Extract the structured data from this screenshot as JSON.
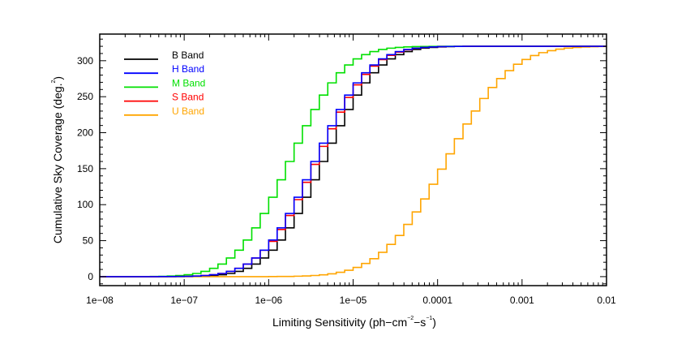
{
  "chart_data": {
    "type": "line",
    "step": true,
    "xscale": "log",
    "xlim": [
      1e-08,
      0.01
    ],
    "ylim": [
      -12.5,
      337
    ],
    "grid": false,
    "legend_placement": "top-left",
    "xlabel": {
      "main": "Limiting Sensitivity (ph−cm",
      "sup1": "−2",
      "mid": "−s",
      "sup2": "−1",
      "end": ")"
    },
    "ylabel": {
      "main": "Cumulative Sky Coverage (deg.",
      "sup": "2",
      "end": ")"
    },
    "x_tick_labels": [
      "1e−08",
      "1e−07",
      "1e−06",
      "1e−05",
      "0.0001",
      "0.001",
      "0.01"
    ],
    "x_ticks": [
      1e-08,
      1e-07,
      1e-06,
      1e-05,
      0.0001,
      0.001,
      0.01
    ],
    "y_ticks": [
      0,
      50,
      100,
      150,
      200,
      250,
      300
    ],
    "y_tick_labels": [
      "0",
      "50",
      "100",
      "150",
      "200",
      "250",
      "300"
    ],
    "x": [
      1e-08,
      1.26e-08,
      1.58e-08,
      2e-08,
      2.51e-08,
      3.16e-08,
      3.98e-08,
      5.01e-08,
      6.31e-08,
      7.94e-08,
      1e-07,
      1.26e-07,
      1.58e-07,
      2e-07,
      2.51e-07,
      3.16e-07,
      3.98e-07,
      5.01e-07,
      6.31e-07,
      7.94e-07,
      1e-06,
      1.26e-06,
      1.58e-06,
      2e-06,
      2.51e-06,
      3.16e-06,
      3.98e-06,
      5.01e-06,
      6.31e-06,
      7.94e-06,
      1e-05,
      1.26e-05,
      1.58e-05,
      2e-05,
      2.51e-05,
      3.16e-05,
      3.98e-05,
      5.01e-05,
      6.31e-05,
      7.94e-05,
      0.0001,
      0.000126,
      0.000158,
      0.0002,
      0.000251,
      0.000316,
      0.000398,
      0.000501,
      0.000631,
      0.000794,
      0.001,
      0.00126,
      0.00158,
      0.002,
      0.00251,
      0.00316,
      0.00398,
      0.00501,
      0.00631,
      0.00794,
      0.01
    ],
    "series": [
      {
        "name": "B Band",
        "color": "#000000",
        "values": [
          0,
          0,
          0,
          0,
          0,
          0,
          0,
          0,
          0.1,
          0.1,
          0.2,
          0.4,
          0.8,
          1.5,
          2.6,
          4.4,
          7.3,
          11.5,
          17.5,
          25.9,
          36.8,
          50.8,
          67.8,
          87.8,
          110.3,
          134.6,
          160,
          185.4,
          209.7,
          232.2,
          252.2,
          269.2,
          283.2,
          294.1,
          302.5,
          308.5,
          312.7,
          315.6,
          317.4,
          318.5,
          319.2,
          319.6,
          319.8,
          319.9,
          320,
          320,
          320,
          320,
          320,
          320,
          320,
          320,
          320,
          320,
          320,
          320,
          320,
          320,
          320,
          320,
          320
        ]
      },
      {
        "name": "H Band",
        "color": "#0000ff",
        "values": [
          0,
          0,
          0,
          0,
          0,
          0,
          0,
          0.1,
          0.1,
          0.2,
          0.4,
          0.8,
          1.5,
          2.6,
          4.4,
          7.3,
          11.5,
          17.5,
          25.9,
          36.8,
          50.8,
          67.8,
          87.8,
          110.3,
          134.6,
          160,
          185.4,
          209.7,
          232.2,
          252.2,
          269.2,
          283.2,
          294.1,
          302.5,
          308.5,
          312.7,
          315.6,
          317.4,
          318.5,
          319.2,
          319.6,
          319.8,
          319.9,
          320,
          320,
          320,
          320,
          320,
          320,
          320,
          320,
          320,
          320,
          320,
          320,
          320,
          320,
          320,
          320,
          320,
          320
        ]
      },
      {
        "name": "M Band",
        "color": "#00e000",
        "values": [
          0,
          0,
          0,
          0,
          0.1,
          0.1,
          0.2,
          0.4,
          0.8,
          1.5,
          2.6,
          4.4,
          7.3,
          11.5,
          17.5,
          25.9,
          36.8,
          50.8,
          67.8,
          87.8,
          110.3,
          134.6,
          160,
          185.4,
          209.7,
          232.2,
          252.2,
          269.2,
          283.2,
          294.1,
          302.5,
          308.5,
          312.7,
          315.6,
          317.4,
          318.5,
          319.2,
          319.6,
          319.8,
          319.9,
          320,
          320,
          320,
          320,
          320,
          320,
          320,
          320,
          320,
          320,
          320,
          320,
          320,
          320,
          320,
          320,
          320,
          320,
          320,
          320,
          320
        ]
      },
      {
        "name": "S Band",
        "color": "#ff0000",
        "values": [
          0,
          0,
          0,
          0,
          0,
          0,
          0,
          0.1,
          0.1,
          0.2,
          0.4,
          0.8,
          1.5,
          2.6,
          4.4,
          7.3,
          11.5,
          17.5,
          25.9,
          36.8,
          49,
          65.5,
          85,
          107,
          131,
          156,
          181,
          205.5,
          228.5,
          249,
          266.5,
          281,
          292.5,
          301.5,
          307.5,
          312,
          315.2,
          317.4,
          318.5,
          319.2,
          319.6,
          319.8,
          319.9,
          320,
          320,
          320,
          320,
          320,
          320,
          320,
          320,
          320,
          320,
          320,
          320,
          320,
          320,
          320,
          320,
          320,
          320
        ]
      },
      {
        "name": "U Band",
        "color": "#ffa500",
        "values": [
          0,
          0,
          0,
          0,
          0,
          0,
          0,
          0,
          0,
          0,
          0,
          0,
          0,
          0,
          0,
          0,
          0,
          0,
          0,
          0,
          0.1,
          0.2,
          0.3,
          0.6,
          1.0,
          1.6,
          2.5,
          3.9,
          6.0,
          8.8,
          12.8,
          18.3,
          24.9,
          33.8,
          44.8,
          57.2,
          72.5,
          89.9,
          107.9,
          128.4,
          149.4,
          170.6,
          191.6,
          212.1,
          230.1,
          247.5,
          262.8,
          275.2,
          286.2,
          295.1,
          301.7,
          307.2,
          311.2,
          314.0,
          316.1,
          317.5,
          318.4,
          319.0,
          319.4,
          319.7,
          319.8
        ]
      }
    ]
  }
}
